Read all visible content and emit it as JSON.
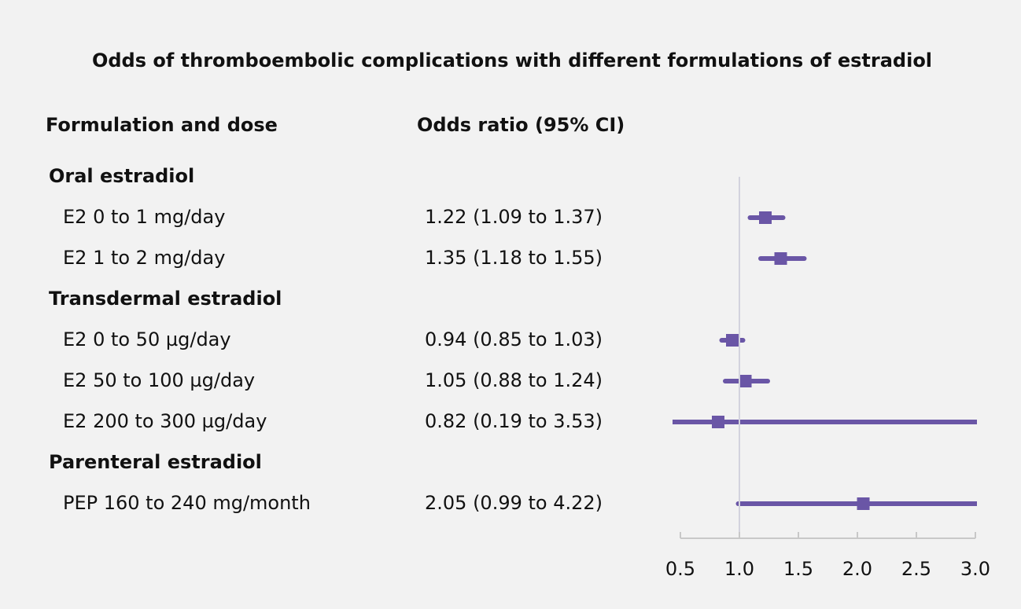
{
  "chart_data": {
    "type": "forest",
    "title": "Odds of thromboembolic complications with different formulations of estradiol",
    "column_headers": [
      "Formulation and dose",
      "Odds ratio (95% CI)"
    ],
    "color": "#6a56a6",
    "reference": 1,
    "xlim": [
      0.5,
      3.0
    ],
    "xticks": [
      0.5,
      {
        "value": 1,
        "label": "1.0"
      },
      1.5,
      {
        "value": 2,
        "label": "2.0"
      },
      2.5,
      {
        "value": 3,
        "label": "3.0"
      }
    ],
    "groups": [
      {
        "name": "Oral estradiol",
        "categories": [
          "E2 0 to 1 mg/day",
          "E2 1 to 2 mg/day"
        ],
        "values": [
          1.22,
          1.35
        ],
        "lower": [
          1.09,
          1.18
        ],
        "upper": [
          1.37,
          1.55
        ],
        "value_labels": [
          "1.22 (1.09 to 1.37)",
          "1.35 (1.18 to 1.55)"
        ]
      },
      {
        "name": "Transdermal estradiol",
        "categories": [
          "E2 0 to 50 µg/day",
          "E2 50 to 100 µg/day",
          "E2 200 to 300 µg/day"
        ],
        "values": [
          0.94,
          1.05,
          0.82
        ],
        "lower": [
          0.85,
          0.88,
          0.19
        ],
        "upper": [
          1.03,
          1.24,
          3.53
        ],
        "value_labels": [
          "0.94 (0.85 to 1.03)",
          "1.05 (0.88 to 1.24)",
          "0.82 (0.19 to 3.53)"
        ]
      },
      {
        "name": "Parenteral estradiol",
        "categories": [
          "PEP 160 to 240 mg/month"
        ],
        "values": [
          2.05
        ],
        "lower": [
          0.99
        ],
        "upper": [
          4.22
        ],
        "value_labels": [
          "2.05 (0.99 to 4.22)"
        ]
      }
    ]
  }
}
